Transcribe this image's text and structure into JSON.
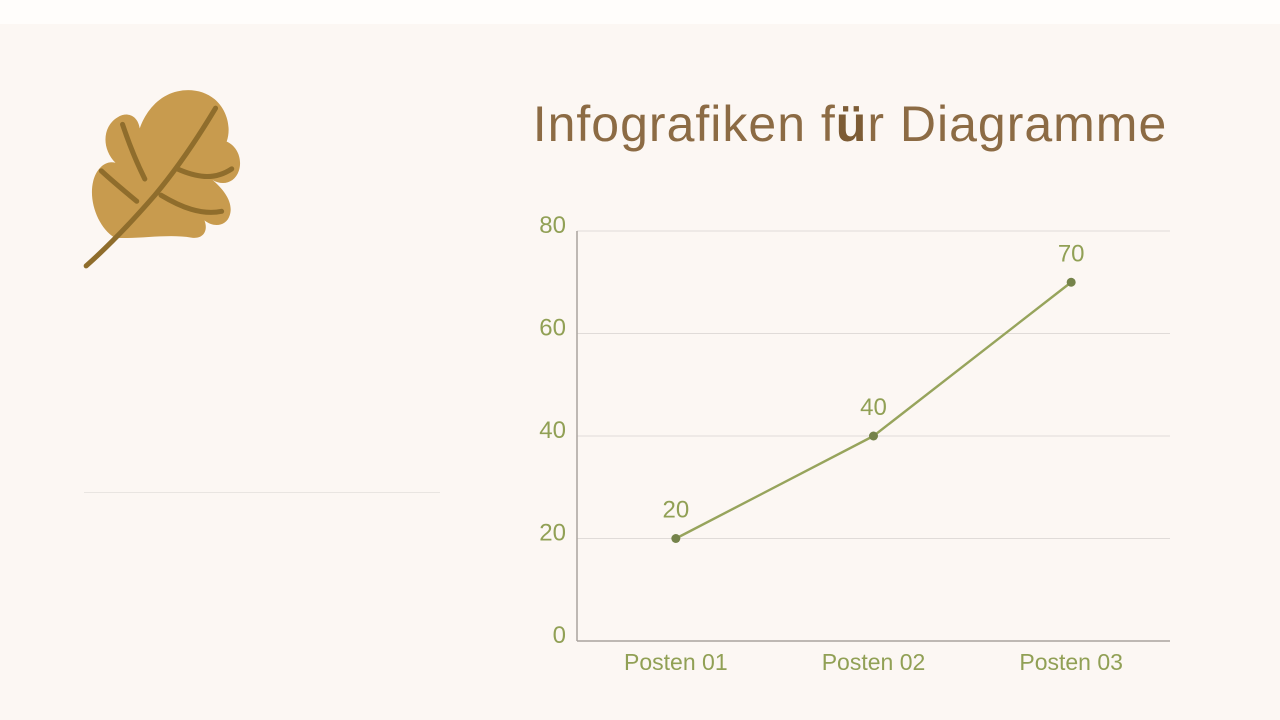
{
  "page": {
    "background": "#fcf7f3",
    "top_strip_color": "#fffdfb"
  },
  "title": {
    "part1": "Infografiken f",
    "umlaut": "ü",
    "part2": "r Diagramme",
    "color": "#8c6b44",
    "umlaut_color": "#7d5c35"
  },
  "decor": {
    "leaf_icon": "oak-leaf",
    "leaf_fill": "#c89b4e",
    "leaf_vein": "#8f6d2c",
    "divider_color": "#e9e5e1"
  },
  "chart_data": {
    "type": "line",
    "categories": [
      "Posten 01",
      "Posten 02",
      "Posten 03"
    ],
    "values": [
      20,
      40,
      70
    ],
    "data_labels": [
      "20",
      "40",
      "70"
    ],
    "yticks": [
      0,
      20,
      40,
      60,
      80
    ],
    "ylim": [
      0,
      80
    ],
    "grid": true,
    "legend": false,
    "colors": {
      "line": "#97a45c",
      "point": "#75834a",
      "label": "#91a055",
      "axis": "#aaa39e",
      "gridline": "#e0dbd8"
    }
  }
}
